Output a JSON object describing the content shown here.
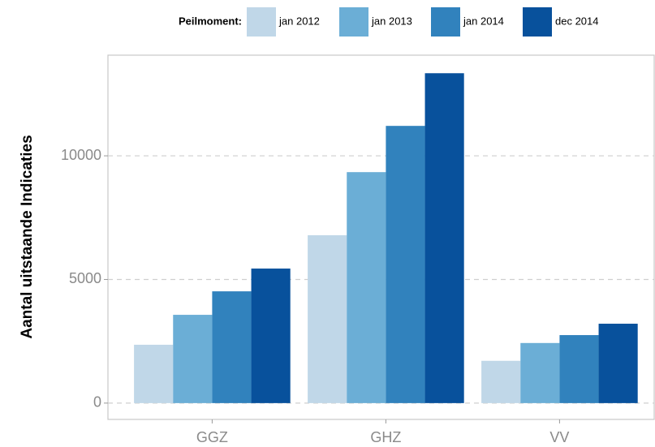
{
  "chart_data": {
    "type": "bar",
    "y_label": "Aantal uitstaande Indicaties",
    "legend_title": "Peilmoment:",
    "legend_position": "top",
    "categories": [
      "GGZ",
      "GHZ",
      "VV"
    ],
    "series": [
      {
        "name": "jan 2012",
        "color": "#c0d7e8",
        "values": [
          2360,
          6790,
          1710
        ]
      },
      {
        "name": "jan 2013",
        "color": "#6baed6",
        "values": [
          3570,
          9340,
          2430
        ]
      },
      {
        "name": "jan 2014",
        "color": "#3182bd",
        "values": [
          4520,
          11210,
          2750
        ]
      },
      {
        "name": "dec 2014",
        "color": "#08519c",
        "values": [
          5440,
          13340,
          3210
        ]
      }
    ],
    "ylim": [
      -660,
      14070
    ],
    "yticks": [
      0,
      5000,
      10000
    ],
    "grid": true
  }
}
